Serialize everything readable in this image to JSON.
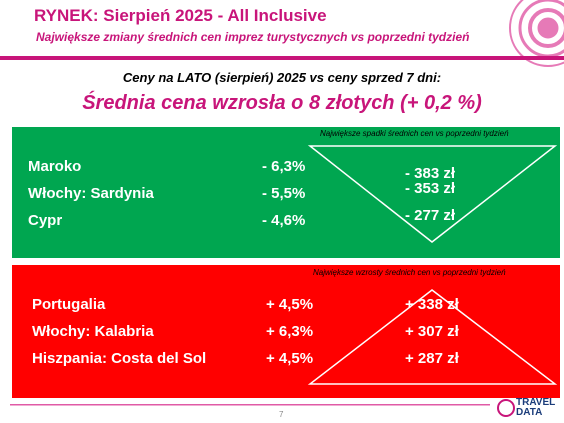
{
  "header": {
    "title": "RYNEK: Sierpień 2025 - All Inclusive",
    "subtitle": "Największe zmiany średnich cen imprez turystycznych vs poprzedni tydzień"
  },
  "summary": {
    "intro": "Ceny na LATO (sierpień) 2025 vs ceny sprzed 7 dni:",
    "headline": "Średnia cena wzrosła o 8 złotych (+ 0,2 %)"
  },
  "decreases": {
    "note": "Największe spadki średnich cen vs poprzedni tydzień",
    "rows": [
      [
        "Maroko",
        "- 6,3%",
        "- 383 zł"
      ],
      [
        "Włochy: Sardynia",
        "- 5,5%",
        "- 353 zł"
      ],
      [
        "Cypr",
        "- 4,6%",
        "- 277 zł"
      ]
    ]
  },
  "increases": {
    "note": "Największe wzrosty średnich cen vs poprzedni tydzień",
    "rows": [
      [
        "Portugalia",
        "+ 4,5%",
        "+ 338 zł"
      ],
      [
        "Włochy: Kalabria",
        "+ 6,3%",
        "+ 307 zł"
      ],
      [
        "Hiszpania: Costa del Sol",
        "+ 4,5%",
        "+ 287 zł"
      ]
    ]
  },
  "footer": {
    "page": "7",
    "logo_top": "TRAVEL",
    "logo_bottom": "DATA"
  }
}
